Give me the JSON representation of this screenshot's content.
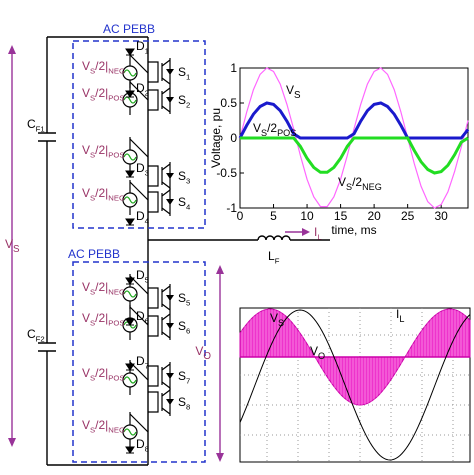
{
  "blocks": [
    {
      "label": "AC PEBB"
    },
    {
      "label": "AC PEBB"
    }
  ],
  "sources": [
    [
      "V",
      "S",
      "/2|",
      "NEG"
    ],
    [
      "V",
      "S",
      "/2|",
      "POS"
    ],
    [
      "V",
      "S",
      "/2|",
      "POS"
    ],
    [
      "V",
      "S",
      "/2|",
      "NEG"
    ],
    [
      "V",
      "S",
      "/2|",
      "NEG"
    ],
    [
      "V",
      "S",
      "/2|",
      "POS"
    ],
    [
      "V",
      "S",
      "/2|",
      "POS"
    ],
    [
      "V",
      "S",
      "/2|",
      "NEG"
    ]
  ],
  "diodes": [
    [
      "D",
      "1"
    ],
    [
      "D",
      "2"
    ],
    [
      "D",
      "3"
    ],
    [
      "D",
      "4"
    ],
    [
      "D",
      "5"
    ],
    [
      "D",
      "6"
    ],
    [
      "D",
      "7"
    ],
    [
      "D",
      "8"
    ]
  ],
  "switches": [
    [
      "S",
      "1"
    ],
    [
      "S",
      "2"
    ],
    [
      "S",
      "3"
    ],
    [
      "S",
      "4"
    ],
    [
      "S",
      "5"
    ],
    [
      "S",
      "6"
    ],
    [
      "S",
      "7"
    ],
    [
      "S",
      "8"
    ]
  ],
  "capacitors": [
    [
      "C",
      "F1"
    ],
    [
      "C",
      "F2"
    ]
  ],
  "vs_label": [
    "V",
    "S"
  ],
  "vo_label": [
    "V",
    "O"
  ],
  "il_label": [
    "I",
    "L"
  ],
  "lf_label": [
    "L",
    "F"
  ],
  "chart": {
    "type": "line",
    "xlabel": "time, ms",
    "ylabel": "Voltage, pu",
    "x": [
      0,
      1,
      2,
      3,
      4,
      5,
      6,
      7,
      8,
      9,
      10,
      11,
      12,
      13,
      14,
      15,
      16,
      17,
      18,
      19,
      20,
      21,
      22,
      23,
      24,
      25,
      26,
      27,
      28,
      29,
      30,
      31,
      32,
      33,
      34
    ],
    "series": [
      {
        "name": [
          "V",
          "S"
        ],
        "color": "#ff66ff",
        "values": [
          0,
          0.37,
          0.69,
          0.91,
          1,
          0.95,
          0.77,
          0.48,
          0.13,
          -0.25,
          -0.59,
          -0.84,
          -0.98,
          -0.98,
          -0.84,
          -0.59,
          -0.25,
          0.13,
          0.48,
          0.77,
          0.95,
          1,
          0.91,
          0.69,
          0.37,
          0,
          -0.37,
          -0.69,
          -0.91,
          -1,
          -0.95,
          -0.77,
          -0.48,
          -0.13,
          0.25
        ]
      },
      {
        "name": [
          "V",
          "S",
          "/2",
          "POS"
        ],
        "color": "#1a1acc",
        "values": [
          0,
          0.18,
          0.34,
          0.45,
          0.5,
          0.48,
          0.39,
          0.24,
          0.06,
          0,
          0,
          0,
          0,
          0,
          0,
          0,
          0,
          0.06,
          0.24,
          0.39,
          0.48,
          0.5,
          0.45,
          0.34,
          0.18,
          0,
          0,
          0,
          0,
          0,
          0,
          0,
          0,
          0,
          0.12
        ]
      },
      {
        "name": [
          "V",
          "S",
          "/2",
          "NEG"
        ],
        "color": "#22dd22",
        "values": [
          0,
          0,
          0,
          0,
          0,
          0,
          0,
          0,
          0,
          -0.12,
          -0.29,
          -0.42,
          -0.49,
          -0.49,
          -0.42,
          -0.29,
          -0.12,
          0,
          0,
          0,
          0,
          0,
          0,
          0,
          0,
          0,
          -0.18,
          -0.34,
          -0.45,
          -0.5,
          -0.48,
          -0.39,
          -0.24,
          -0.06,
          0
        ]
      }
    ],
    "xlim": [
      0,
      34
    ],
    "xticks": [
      0,
      5,
      10,
      15,
      20,
      25,
      30
    ],
    "ylim": [
      -1,
      1
    ],
    "yticks": [
      -1,
      -0.5,
      0,
      0.5,
      1
    ]
  },
  "waveform": {
    "vs": [
      "V",
      "S"
    ],
    "il": [
      "I",
      "L"
    ],
    "vo": [
      "V",
      "O"
    ]
  }
}
